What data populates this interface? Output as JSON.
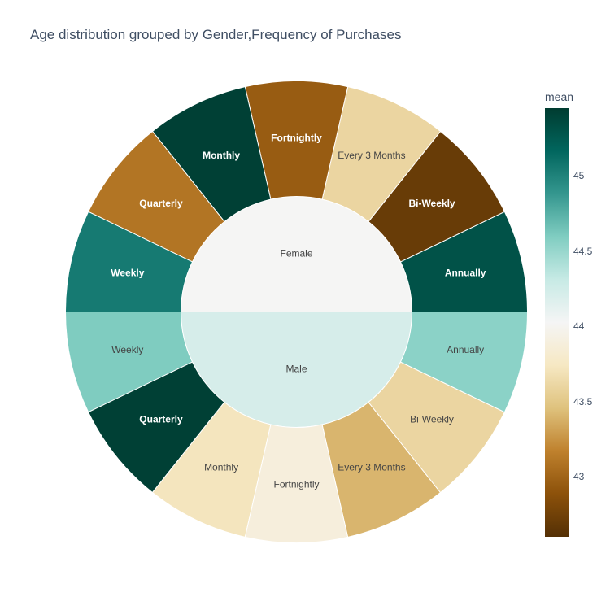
{
  "chart_data": {
    "type": "sunburst",
    "title": "Age distribution grouped by Gender,Frequency of Purchases",
    "color_metric": "mean",
    "color_range": [
      42.6,
      45.45
    ],
    "colorscale": [
      "#543005",
      "#8c510a",
      "#bf812d",
      "#dfc27d",
      "#f6e8c3",
      "#f5f5f5",
      "#c7eae5",
      "#80cdc1",
      "#35978f",
      "#01665e",
      "#003c30"
    ],
    "colorbar_ticks": [
      43,
      43.5,
      44,
      44.5,
      45
    ],
    "groups": [
      {
        "name": "Female",
        "mean": 44.02,
        "children": [
          {
            "name": "Annually",
            "mean": 45.3
          },
          {
            "name": "Bi-Weekly",
            "mean": 42.7
          },
          {
            "name": "Every 3 Months",
            "mean": 43.6
          },
          {
            "name": "Fortnightly",
            "mean": 42.95
          },
          {
            "name": "Monthly",
            "mean": 45.42
          },
          {
            "name": "Quarterly",
            "mean": 43.1
          },
          {
            "name": "Weekly",
            "mean": 45.05
          }
        ]
      },
      {
        "name": "Male",
        "mean": 44.22,
        "children": [
          {
            "name": "Weekly",
            "mean": 44.6
          },
          {
            "name": "Quarterly",
            "mean": 45.42
          },
          {
            "name": "Monthly",
            "mean": 43.72
          },
          {
            "name": "Fortnightly",
            "mean": 43.88
          },
          {
            "name": "Every 3 Months",
            "mean": 43.4
          },
          {
            "name": "Bi-Weekly",
            "mean": 43.6
          },
          {
            "name": "Annually",
            "mean": 44.55
          }
        ]
      }
    ]
  }
}
